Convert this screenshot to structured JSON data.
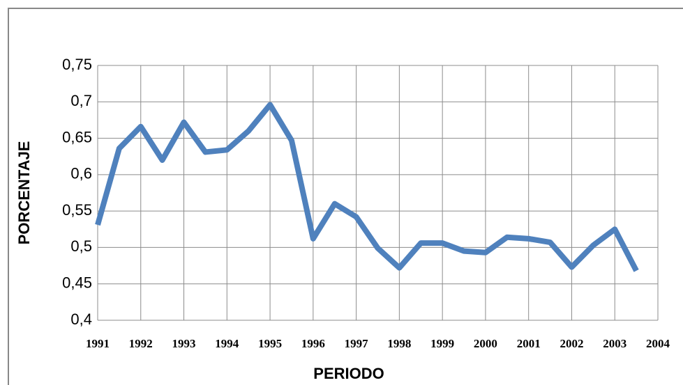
{
  "chart_data": {
    "type": "line",
    "x_label": "PERIODO",
    "y_label": "PORCENTAJE",
    "x": [
      1991,
      1991.5,
      1992,
      1992.5,
      1993,
      1993.5,
      1994,
      1994.5,
      1995,
      1995.5,
      1996,
      1996.5,
      1997,
      1997.5,
      1998,
      1998.5,
      1999,
      1999.5,
      2000,
      2000.5,
      2001,
      2001.5,
      2002,
      2002.5,
      2003,
      2003.5
    ],
    "series": [
      {
        "color": "#4f81bd",
        "values": [
          0.531,
          0.636,
          0.666,
          0.62,
          0.672,
          0.631,
          0.634,
          0.66,
          0.696,
          0.647,
          0.512,
          0.56,
          0.542,
          0.499,
          0.472,
          0.506,
          0.506,
          0.495,
          0.493,
          0.514,
          0.512,
          0.507,
          0.473,
          0.503,
          0.525,
          0.468
        ]
      }
    ],
    "xlim": [
      1991,
      2004
    ],
    "xticks": [
      1991,
      1992,
      1993,
      1994,
      1995,
      1996,
      1997,
      1998,
      1999,
      2000,
      2001,
      2002,
      2003,
      2004
    ],
    "ylim": [
      0.4,
      0.75
    ],
    "yticks": [
      {
        "value": 0.4,
        "label": "0,4"
      },
      {
        "value": 0.45,
        "label": "0,45"
      },
      {
        "value": 0.5,
        "label": "0,5"
      },
      {
        "value": 0.55,
        "label": "0,55"
      },
      {
        "value": 0.6,
        "label": "0,6"
      },
      {
        "value": 0.65,
        "label": "0,65"
      },
      {
        "value": 0.7,
        "label": "0,7"
      },
      {
        "value": 0.75,
        "label": "0,75"
      }
    ],
    "grid": true
  }
}
